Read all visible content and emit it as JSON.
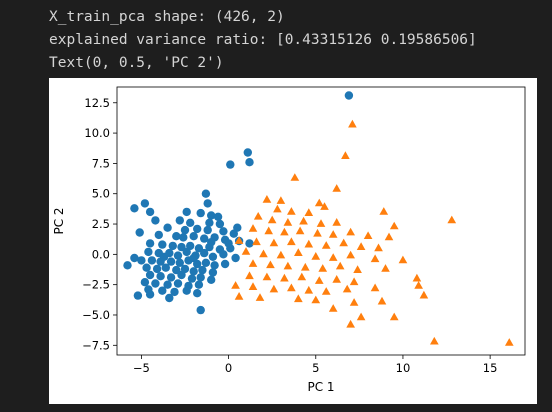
{
  "console": {
    "lines": [
      "X_train_pca shape: (426, 2)",
      "explained variance ratio: [0.43315126 0.19586506]",
      "Text(0, 0.5, 'PC 2')"
    ]
  },
  "colors": {
    "background": "#1e1e1e",
    "text": "#d4d4d4",
    "series_0": "#1f77b4",
    "series_1": "#ff7f0e"
  },
  "chart_data": {
    "type": "scatter",
    "xlabel": "PC 1",
    "ylabel": "PC 2",
    "xlim": [
      -6.4,
      17.0
    ],
    "ylim": [
      -8.3,
      13.8
    ],
    "xticks": [
      -5,
      0,
      5,
      10,
      15
    ],
    "yticks": [
      12.5,
      10.0,
      7.5,
      5.0,
      2.5,
      0.0,
      -2.5,
      -5.0,
      -7.5
    ],
    "grid": false,
    "series": [
      {
        "marker": "circle",
        "color": "#1f77b4",
        "points": [
          [
            6.9,
            13.1
          ],
          [
            1.1,
            8.4
          ],
          [
            1.2,
            7.6
          ],
          [
            0.1,
            7.4
          ],
          [
            -1.3,
            5.0
          ],
          [
            -1.2,
            4.2
          ],
          [
            -4.8,
            4.2
          ],
          [
            -5.4,
            3.8
          ],
          [
            -4.5,
            3.5
          ],
          [
            -2.4,
            3.5
          ],
          [
            -1.6,
            3.4
          ],
          [
            -1.0,
            3.2
          ],
          [
            -0.6,
            3.1
          ],
          [
            -2.8,
            2.8
          ],
          [
            -2.2,
            2.6
          ],
          [
            -1.1,
            2.6
          ],
          [
            -0.5,
            2.5
          ],
          [
            0.5,
            2.2
          ],
          [
            -3.5,
            2.2
          ],
          [
            -2.5,
            2.0
          ],
          [
            -1.8,
            2.1
          ],
          [
            -1.2,
            2.0
          ],
          [
            -0.3,
            1.9
          ],
          [
            0.3,
            1.7
          ],
          [
            -4.0,
            1.6
          ],
          [
            -3.0,
            1.5
          ],
          [
            -2.6,
            1.4
          ],
          [
            -2.0,
            1.5
          ],
          [
            -1.4,
            1.3
          ],
          [
            -0.8,
            1.4
          ],
          [
            -0.2,
            1.2
          ],
          [
            0.6,
            1.1
          ],
          [
            1.2,
            0.9
          ],
          [
            -4.5,
            0.9
          ],
          [
            -3.8,
            0.8
          ],
          [
            -3.2,
            0.7
          ],
          [
            -2.7,
            0.6
          ],
          [
            -2.2,
            0.7
          ],
          [
            -1.7,
            0.5
          ],
          [
            -1.1,
            0.6
          ],
          [
            -0.5,
            0.4
          ],
          [
            0.1,
            0.5
          ],
          [
            -4.6,
            0.2
          ],
          [
            -4.0,
            0.1
          ],
          [
            -3.4,
            0.1
          ],
          [
            -2.9,
            -0.1
          ],
          [
            -2.4,
            0.2
          ],
          [
            -1.9,
            -0.1
          ],
          [
            -1.4,
            0.1
          ],
          [
            -0.9,
            -0.2
          ],
          [
            -0.3,
            0.0
          ],
          [
            0.4,
            -0.3
          ],
          [
            -5.4,
            -0.3
          ],
          [
            -5.0,
            -0.5
          ],
          [
            -4.4,
            -0.5
          ],
          [
            -3.9,
            -0.6
          ],
          [
            -3.3,
            -0.6
          ],
          [
            -2.8,
            -0.7
          ],
          [
            -2.3,
            -0.5
          ],
          [
            -1.8,
            -0.8
          ],
          [
            -1.3,
            -0.7
          ],
          [
            -0.8,
            -0.9
          ],
          [
            -0.2,
            -0.8
          ],
          [
            -5.8,
            -0.9
          ],
          [
            -4.7,
            -1.1
          ],
          [
            -4.1,
            -1.2
          ],
          [
            -3.6,
            -1.1
          ],
          [
            -3.0,
            -1.3
          ],
          [
            -2.5,
            -1.2
          ],
          [
            -2.0,
            -1.4
          ],
          [
            -1.5,
            -1.3
          ],
          [
            -0.9,
            -1.5
          ],
          [
            -4.5,
            -1.7
          ],
          [
            -3.9,
            -1.8
          ],
          [
            -3.3,
            -1.9
          ],
          [
            -2.7,
            -1.7
          ],
          [
            -2.1,
            -2.0
          ],
          [
            -1.6,
            -1.9
          ],
          [
            -1.0,
            -2.1
          ],
          [
            -4.8,
            -2.3
          ],
          [
            -4.2,
            -2.4
          ],
          [
            -3.5,
            -2.5
          ],
          [
            -2.9,
            -2.4
          ],
          [
            -2.3,
            -2.6
          ],
          [
            -1.7,
            -2.5
          ],
          [
            -4.6,
            -2.9
          ],
          [
            -3.8,
            -3.0
          ],
          [
            -3.1,
            -3.1
          ],
          [
            -2.4,
            -3.0
          ],
          [
            -1.8,
            -3.2
          ],
          [
            -5.2,
            -3.4
          ],
          [
            -4.5,
            -3.3
          ],
          [
            -3.4,
            -3.6
          ],
          [
            -1.6,
            -4.6
          ],
          [
            -5.1,
            1.8
          ],
          [
            -4.2,
            2.8
          ],
          [
            -3.7,
            -0.2
          ],
          [
            -2.0,
            -0.3
          ],
          [
            -1.0,
            1.0
          ],
          [
            0.0,
            0.9
          ]
        ]
      },
      {
        "marker": "triangle",
        "color": "#ff7f0e",
        "points": [
          [
            7.1,
            10.7
          ],
          [
            6.7,
            8.1
          ],
          [
            3.8,
            6.3
          ],
          [
            6.2,
            5.4
          ],
          [
            2.2,
            4.5
          ],
          [
            3.0,
            4.4
          ],
          [
            5.2,
            4.2
          ],
          [
            5.5,
            3.9
          ],
          [
            2.8,
            3.7
          ],
          [
            3.6,
            3.5
          ],
          [
            4.6,
            3.4
          ],
          [
            8.9,
            3.5
          ],
          [
            12.8,
            2.8
          ],
          [
            1.7,
            3.1
          ],
          [
            2.5,
            2.8
          ],
          [
            3.4,
            2.6
          ],
          [
            4.3,
            2.7
          ],
          [
            5.3,
            2.5
          ],
          [
            6.2,
            2.6
          ],
          [
            9.5,
            2.3
          ],
          [
            1.4,
            2.1
          ],
          [
            2.3,
            1.9
          ],
          [
            3.2,
            1.8
          ],
          [
            4.1,
            1.9
          ],
          [
            5.1,
            1.7
          ],
          [
            6.0,
            1.6
          ],
          [
            7.0,
            1.8
          ],
          [
            8.0,
            1.5
          ],
          [
            9.2,
            1.4
          ],
          [
            0.6,
            1.1
          ],
          [
            1.6,
            1.0
          ],
          [
            2.6,
            0.9
          ],
          [
            3.6,
            1.0
          ],
          [
            4.6,
            0.8
          ],
          [
            5.6,
            0.7
          ],
          [
            6.6,
            0.9
          ],
          [
            7.6,
            0.6
          ],
          [
            8.6,
            0.5
          ],
          [
            1.0,
            0.2
          ],
          [
            2.0,
            0.0
          ],
          [
            3.0,
            -0.1
          ],
          [
            4.0,
            0.1
          ],
          [
            5.0,
            -0.2
          ],
          [
            6.0,
            -0.3
          ],
          [
            7.0,
            -0.1
          ],
          [
            8.4,
            -0.4
          ],
          [
            10.0,
            -0.5
          ],
          [
            1.4,
            -0.8
          ],
          [
            2.4,
            -0.9
          ],
          [
            3.4,
            -1.0
          ],
          [
            4.4,
            -1.1
          ],
          [
            5.4,
            -1.2
          ],
          [
            6.4,
            -1.0
          ],
          [
            7.4,
            -1.3
          ],
          [
            9.0,
            -1.2
          ],
          [
            1.2,
            -1.8
          ],
          [
            2.2,
            -1.9
          ],
          [
            3.2,
            -2.0
          ],
          [
            4.2,
            -1.9
          ],
          [
            5.2,
            -2.2
          ],
          [
            6.2,
            -2.1
          ],
          [
            7.2,
            -2.3
          ],
          [
            10.8,
            -2.0
          ],
          [
            0.4,
            -2.6
          ],
          [
            1.4,
            -2.7
          ],
          [
            2.6,
            -2.9
          ],
          [
            3.6,
            -2.8
          ],
          [
            4.6,
            -3.0
          ],
          [
            5.6,
            -3.1
          ],
          [
            6.8,
            -2.9
          ],
          [
            8.4,
            -2.8
          ],
          [
            10.9,
            -2.6
          ],
          [
            11.2,
            -3.4
          ],
          [
            0.6,
            -3.5
          ],
          [
            1.8,
            -3.6
          ],
          [
            4.0,
            -3.7
          ],
          [
            5.0,
            -3.8
          ],
          [
            7.2,
            -4.0
          ],
          [
            8.8,
            -3.9
          ],
          [
            6.0,
            -4.5
          ],
          [
            7.6,
            -5.2
          ],
          [
            9.5,
            -5.2
          ],
          [
            7.0,
            -5.8
          ],
          [
            11.8,
            -7.2
          ],
          [
            16.1,
            -7.3
          ]
        ]
      }
    ]
  }
}
